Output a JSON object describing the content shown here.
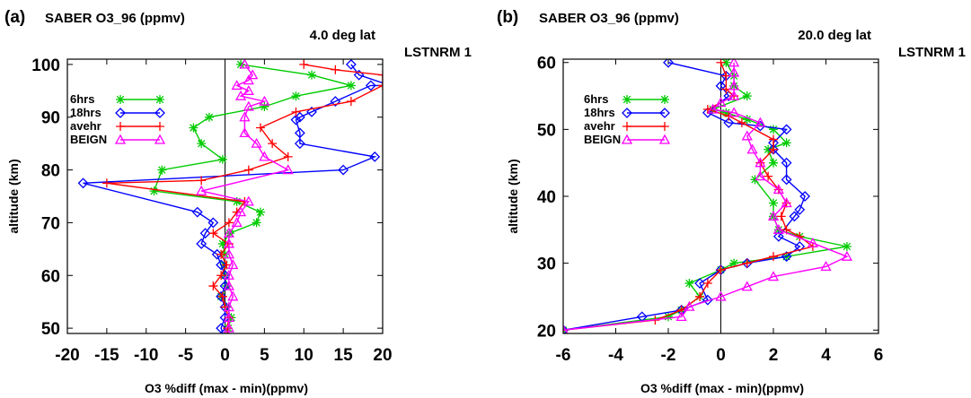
{
  "chart_data": [
    {
      "type": "line",
      "panel_label": "(a)",
      "title": "SABER O3_96 (ppmv)",
      "lat_label": "4.0 deg lat",
      "tag": "LSTNRM 1",
      "xlabel": "O3 %diff (max - min)(ppmv)",
      "ylabel": "altitude (km)",
      "xlim": [
        -20,
        20
      ],
      "ylim": [
        49,
        101
      ],
      "xticks": [
        -20,
        -15,
        -10,
        -5,
        0,
        5,
        10,
        15,
        20
      ],
      "yticks": [
        50,
        60,
        70,
        80,
        90,
        100
      ],
      "x_tick_labels": [
        "-20",
        "-15",
        "-10",
        "-5",
        "0",
        "5",
        "10",
        "15",
        "20"
      ],
      "y_tick_labels": [
        "50",
        "60",
        "70",
        "80",
        "90",
        "100"
      ],
      "zero_line": true,
      "legend_position": "top-left",
      "series": [
        {
          "name": "6hrs",
          "color": "#00cc00",
          "marker": "asterisk",
          "x": [
            0.3,
            0.4,
            0.8,
            0.2,
            -0.5,
            0.2,
            0.0,
            -0.1,
            0.0,
            -0.3,
            0.6,
            4.0,
            4.5,
            1.5,
            -9.0,
            -8.0,
            -0.3,
            -3.0,
            -4.0,
            -2.0,
            5.0,
            9.0,
            16.0,
            11.0,
            2.0
          ],
          "y": [
            48,
            50,
            52,
            54,
            56,
            58,
            60,
            62,
            64,
            66,
            68,
            70,
            72,
            74,
            76,
            80,
            82,
            85,
            88,
            90,
            92,
            94,
            96,
            98,
            100
          ]
        },
        {
          "name": "18hrs",
          "color": "#0000ff",
          "marker": "diamond",
          "x": [
            0.0,
            -0.5,
            0.0,
            0.0,
            -0.5,
            0.0,
            0.0,
            -0.5,
            -1.0,
            -3.0,
            -2.5,
            -1.5,
            -3.5,
            -18.0,
            15.0,
            19.0,
            9.5,
            9.5,
            9.0,
            9.5,
            11.0,
            14.0,
            18.5,
            21.0,
            17.0,
            16.0
          ],
          "y": [
            48,
            50,
            52,
            54,
            56,
            58,
            60,
            62,
            64,
            66,
            68,
            70,
            72,
            77.5,
            80,
            82.5,
            85,
            87,
            89.5,
            90,
            91,
            93,
            96,
            96,
            98,
            100
          ]
        },
        {
          "name": "avehr",
          "color": "#ff0000",
          "marker": "plus",
          "x": [
            0.2,
            0.3,
            0.5,
            0.0,
            -0.3,
            -1.5,
            -0.5,
            0.2,
            -0.5,
            0.5,
            -1.5,
            0.5,
            1.5,
            2.5,
            -15.0,
            -3.0,
            3.0,
            8.0,
            6.0,
            4.5,
            9.0,
            16.0,
            20.0,
            20.0,
            14.0,
            10.0
          ],
          "y": [
            48,
            50,
            52,
            54,
            56,
            58,
            60,
            62,
            64,
            66,
            68,
            70,
            72,
            74,
            77.5,
            78,
            80,
            82.5,
            85,
            88,
            91,
            93,
            96,
            98,
            99,
            100
          ]
        },
        {
          "name": "BEIGN",
          "color": "#ff00ff",
          "marker": "triangle",
          "x": [
            0.5,
            0.5,
            0.5,
            0.5,
            1.0,
            0.5,
            0.5,
            1.0,
            0.5,
            0.5,
            0.5,
            1.5,
            2.0,
            3.0,
            -3.0,
            8.0,
            5.0,
            4.0,
            2.5,
            2.5,
            3.0,
            5.0,
            2.0,
            3.0,
            1.5,
            3.0,
            3.5,
            2.5
          ],
          "y": [
            48,
            50,
            52,
            54,
            56,
            58,
            60,
            62,
            64,
            66,
            68,
            70,
            72,
            74,
            76,
            80,
            82.5,
            85,
            87,
            90,
            92,
            93,
            94,
            95,
            96,
            97,
            98,
            100
          ]
        }
      ]
    },
    {
      "type": "line",
      "panel_label": "(b)",
      "title": "SABER O3_96 (ppmv)",
      "lat_label": "20.0 deg lat",
      "tag": "LSTNRM 1",
      "xlabel": "O3 %diff (max - min)(ppmv)",
      "ylabel": "altitude (km)",
      "xlim": [
        -6,
        6
      ],
      "ylim": [
        19.5,
        60.5
      ],
      "xticks": [
        -6,
        -4,
        -2,
        0,
        2,
        4,
        6
      ],
      "yticks": [
        20,
        30,
        40,
        50,
        60
      ],
      "x_tick_labels": [
        "-6",
        "-4",
        "-2",
        "0",
        "2",
        "4",
        "6"
      ],
      "y_tick_labels": [
        "20",
        "30",
        "40",
        "50",
        "60"
      ],
      "zero_line": true,
      "legend_position": "top-left",
      "series": [
        {
          "name": "6hrs",
          "color": "#00cc00",
          "marker": "asterisk",
          "x": [
            -6.0,
            -2.0,
            -1.5,
            -0.8,
            -1.2,
            0.0,
            0.5,
            2.5,
            4.8,
            3.0,
            2.2,
            2.0,
            2.0,
            1.3,
            2.0,
            1.8,
            2.5,
            2.0,
            1.0,
            0.2,
            -0.3,
            1.0,
            0.5,
            0.5,
            0.2
          ],
          "y": [
            20,
            22,
            23,
            25,
            27,
            29,
            30,
            31,
            32.5,
            34,
            35,
            37,
            39,
            42.5,
            45,
            47,
            48,
            50,
            51.5,
            52.5,
            53,
            55,
            56.5,
            58,
            60
          ]
        },
        {
          "name": "18hrs",
          "color": "#0000ff",
          "marker": "diamond",
          "x": [
            -6.0,
            -3.0,
            -1.5,
            -0.5,
            -0.8,
            0.0,
            1.0,
            2.5,
            3.0,
            2.2,
            2.8,
            3.0,
            3.2,
            2.5,
            2.5,
            2.0,
            2.0,
            2.5,
            1.5,
            0.3,
            -0.5,
            0.3,
            0.0,
            0.2,
            -2.0
          ],
          "y": [
            20,
            22,
            23,
            24.5,
            27,
            29,
            30,
            31,
            32.5,
            34,
            37,
            38,
            40,
            42.5,
            45,
            47,
            48,
            50,
            50.5,
            51,
            52.5,
            55,
            56.5,
            58,
            60
          ]
        },
        {
          "name": "avehr",
          "color": "#ff0000",
          "marker": "plus",
          "x": [
            -6.0,
            -2.5,
            -1.5,
            -0.8,
            -0.5,
            0.0,
            1.0,
            2.0,
            3.5,
            3.0,
            2.5,
            2.3,
            2.5,
            2.2,
            1.8,
            1.5,
            2.0,
            2.0,
            0.8,
            0.3,
            -0.5,
            0.5,
            0.2,
            0.2,
            0.0
          ],
          "y": [
            20,
            21.5,
            23,
            25,
            27,
            29,
            30,
            31,
            32.5,
            34,
            35,
            37,
            39,
            41,
            43,
            45,
            47,
            48.5,
            51,
            52,
            53,
            55,
            56,
            58,
            60
          ]
        },
        {
          "name": "BEIGN",
          "color": "#ff00ff",
          "marker": "triangle",
          "x": [
            -6.0,
            -1.5,
            -1.2,
            0.0,
            1.0,
            2.0,
            4.0,
            4.8,
            3.5,
            2.2,
            2.0,
            2.5,
            2.2,
            1.5,
            1.5,
            1.2,
            1.0,
            1.5,
            0.5,
            -0.3,
            0.0,
            0.5,
            0.5,
            0.5,
            0.5
          ],
          "y": [
            20,
            22,
            23.5,
            25,
            26.5,
            28,
            29.5,
            31,
            33,
            35,
            37,
            39,
            41,
            43,
            45,
            47,
            49,
            51,
            52.5,
            53,
            54,
            55,
            56.5,
            58.5,
            60
          ]
        }
      ]
    }
  ]
}
